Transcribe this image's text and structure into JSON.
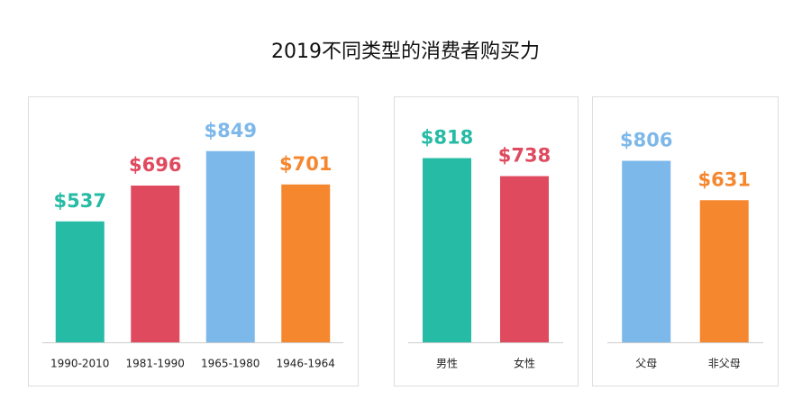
{
  "title": "2019不同类型的消费者购买力",
  "chart_data": [
    {
      "type": "bar",
      "categories": [
        "1990-2010",
        "1981-1990",
        "1965-1980",
        "1946-1964"
      ],
      "values": [
        537,
        696,
        849,
        701
      ],
      "value_labels": [
        "$537",
        "$696",
        "$849",
        "$701"
      ],
      "colors": [
        "#26bba5",
        "#e04a5f",
        "#7db8ea",
        "#f5872f"
      ]
    },
    {
      "type": "bar",
      "categories": [
        "男性",
        "女性"
      ],
      "values": [
        818,
        738
      ],
      "value_labels": [
        "$818",
        "$738"
      ],
      "colors": [
        "#26bba5",
        "#e04a5f"
      ]
    },
    {
      "type": "bar",
      "categories": [
        "父母",
        "非父母"
      ],
      "values": [
        806,
        631
      ],
      "value_labels": [
        "$806",
        "$631"
      ],
      "colors": [
        "#7db8ea",
        "#f5872f"
      ]
    }
  ]
}
